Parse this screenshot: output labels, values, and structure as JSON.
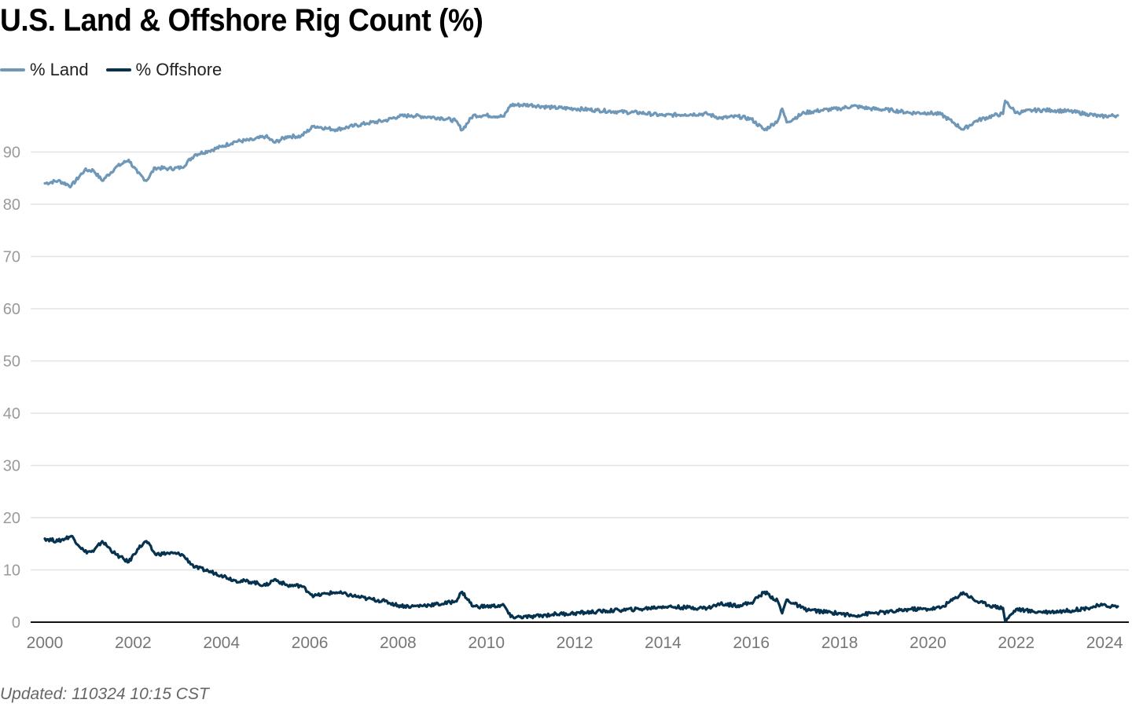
{
  "title": "U.S. Land & Offshore Rig Count (%)",
  "legend": [
    {
      "label": "% Land",
      "color": "#6f98b8"
    },
    {
      "label": "% Offshore",
      "color": "#05324e"
    }
  ],
  "footer": "Updated: 110324 10:15 CST",
  "chart_data": {
    "type": "line",
    "title": "U.S. Land & Offshore Rig Count (%)",
    "xlabel": "",
    "ylabel": "",
    "xlim": [
      2000,
      2024.6
    ],
    "ylim": [
      0,
      100
    ],
    "grid": true,
    "legend_position": "top-left",
    "y_ticks": [
      0,
      10,
      20,
      30,
      40,
      50,
      60,
      70,
      80,
      90
    ],
    "x_ticks": [
      2000,
      2002,
      2004,
      2006,
      2008,
      2010,
      2012,
      2014,
      2016,
      2018,
      2020,
      2022,
      2024
    ],
    "x": [
      2000.0,
      2000.3,
      2000.6,
      2000.9,
      2001.1,
      2001.3,
      2001.6,
      2001.9,
      2002.1,
      2002.3,
      2002.5,
      2002.8,
      2003.1,
      2003.4,
      2003.7,
      2004.0,
      2004.3,
      2004.7,
      2005.0,
      2005.2,
      2005.5,
      2005.8,
      2006.1,
      2006.4,
      2006.6,
      2007.0,
      2007.3,
      2007.7,
      2008.0,
      2008.3,
      2008.7,
      2009.0,
      2009.3,
      2009.45,
      2009.7,
      2010.0,
      2010.4,
      2010.55,
      2011.0,
      2011.5,
      2012.0,
      2012.5,
      2013.0,
      2013.5,
      2014.0,
      2014.5,
      2015.0,
      2015.3,
      2015.7,
      2016.0,
      2016.3,
      2016.6,
      2016.7,
      2016.8,
      2017.2,
      2017.6,
      2018.0,
      2018.3,
      2018.7,
      2019.2,
      2019.6,
      2020.0,
      2020.3,
      2020.6,
      2020.8,
      2021.1,
      2021.5,
      2021.7,
      2021.75,
      2022.0,
      2022.4,
      2022.8,
      2023.2,
      2023.6,
      2023.9,
      2024.3
    ],
    "series": [
      {
        "name": "% Land",
        "color": "#6f98b8",
        "values": [
          84.0,
          84.5,
          83.5,
          86.5,
          86.5,
          84.5,
          87.0,
          88.5,
          86.0,
          84.5,
          87.0,
          86.8,
          87.0,
          89.5,
          90.2,
          91.0,
          92.0,
          92.3,
          93.0,
          91.8,
          93.0,
          93.0,
          95.0,
          94.5,
          94.3,
          95.0,
          95.5,
          96.0,
          96.8,
          97.0,
          96.7,
          96.5,
          96.0,
          94.2,
          97.0,
          97.0,
          96.8,
          99.0,
          99.0,
          98.5,
          98.3,
          98.0,
          97.7,
          97.5,
          97.0,
          97.2,
          97.3,
          96.5,
          96.8,
          96.3,
          94.2,
          96.0,
          98.3,
          95.7,
          97.5,
          98.0,
          98.3,
          98.8,
          98.3,
          98.0,
          97.5,
          97.5,
          97.2,
          95.5,
          94.3,
          96.0,
          97.0,
          97.3,
          99.8,
          97.5,
          98.0,
          98.0,
          97.8,
          97.3,
          96.8,
          97.0
        ]
      },
      {
        "name": "% Offshore",
        "color": "#05324e",
        "values": [
          16.0,
          15.5,
          16.5,
          13.5,
          13.5,
          15.5,
          13.0,
          11.5,
          14.0,
          15.5,
          13.0,
          13.2,
          13.0,
          10.5,
          9.8,
          9.0,
          8.0,
          7.7,
          7.0,
          8.2,
          7.0,
          7.0,
          5.0,
          5.5,
          5.7,
          5.0,
          4.5,
          4.0,
          3.2,
          3.0,
          3.3,
          3.5,
          4.0,
          5.8,
          3.0,
          3.0,
          3.2,
          1.0,
          1.0,
          1.5,
          1.7,
          2.0,
          2.3,
          2.5,
          3.0,
          2.8,
          2.7,
          3.5,
          3.2,
          3.7,
          5.8,
          4.0,
          1.7,
          4.3,
          2.5,
          2.0,
          1.7,
          1.2,
          1.7,
          2.0,
          2.5,
          2.5,
          2.8,
          4.5,
          5.7,
          4.0,
          3.0,
          2.7,
          0.2,
          2.5,
          2.0,
          2.0,
          2.2,
          2.7,
          3.2,
          3.0
        ]
      }
    ]
  }
}
